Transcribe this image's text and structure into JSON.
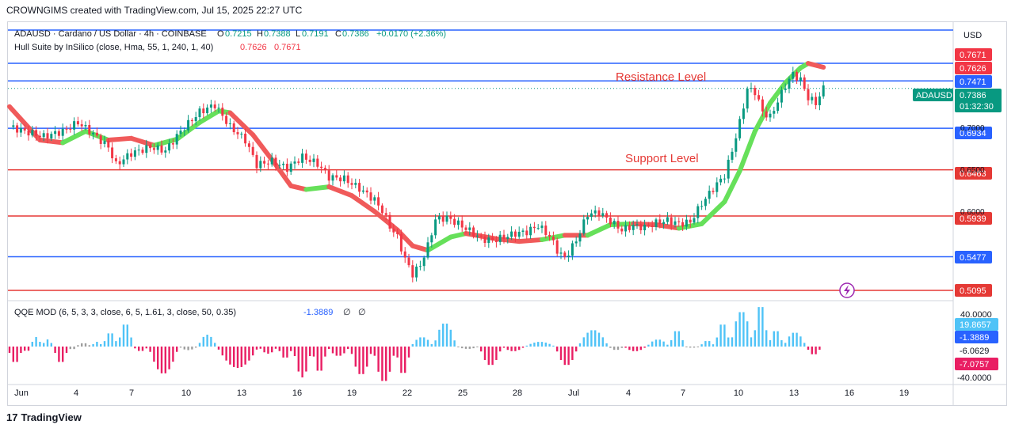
{
  "header": {
    "attribution": "CROWNGIMS created with TradingView.com, Jul 15, 2025 22:27 UTC"
  },
  "footer": {
    "brand": "TradingView",
    "logo_glyph": "17"
  },
  "colors": {
    "bull": "#089981",
    "bear": "#f23645",
    "blue_line": "#2962ff",
    "red_line": "#e53935",
    "hull_up": "#66e05a",
    "hull_down": "#f05a5a",
    "qqe_pos": "#4fc3f7",
    "qqe_neg": "#e91e63",
    "qqe_neutral": "#9e9e9e"
  },
  "legend": {
    "symbol": "ADAUSD · Cardano / US Dollar · 4h · COINBASE",
    "o_label": "O",
    "o": "0.7215",
    "h_label": "H",
    "h": "0.7388",
    "l_label": "L",
    "l": "0.7191",
    "c_label": "C",
    "c": "0.7386",
    "change": "+0.0170 (+2.36%)",
    "hull_label": "Hull Suite by InSilico (close, Hma, 55, 1, 240, 1, 40)",
    "hull_v1": "0.7626",
    "hull_v2": "0.7671"
  },
  "qqe_legend": {
    "label": "QQE MOD (6, 5, 3, 3, close, 6, 5, 1.61, 3, close, 50, 0.35)",
    "value": "-1.3889",
    "extra1": "∅",
    "extra2": "∅"
  },
  "currency": "USD",
  "annotations": {
    "resistance": "Resistance Level",
    "support": "Support Level"
  },
  "chart_data": [
    {
      "type": "candlestick",
      "title": "ADAUSD · Cardano / US Dollar · 4h · COINBASE",
      "ylim": [
        0.5,
        0.78
      ],
      "x_ticks": [
        "Jun",
        "4",
        "7",
        "10",
        "13",
        "16",
        "19",
        "22",
        "25",
        "28",
        "Jul",
        "4",
        "7",
        "10",
        "13",
        "16",
        "19"
      ],
      "y_axis_labels": [
        "0.7000",
        "0.6500",
        "0.6000"
      ],
      "last_price": {
        "symbol": "ADAUSD",
        "value": "0.7386",
        "countdown": "01:32:30"
      },
      "price_tags": [
        {
          "value": "0.7671",
          "color": "#f23645"
        },
        {
          "value": "0.7626",
          "color": "#f23645"
        },
        {
          "value": "0.7471",
          "color": "#2962ff"
        },
        {
          "value": "0.6934",
          "color": "#2962ff"
        },
        {
          "value": "0.6463",
          "color": "#e53935"
        },
        {
          "value": "0.5939",
          "color": "#e53935"
        },
        {
          "value": "0.5477",
          "color": "#2962ff"
        },
        {
          "value": "0.5095",
          "color": "#e53935"
        }
      ],
      "horizontal_levels": [
        {
          "value": 0.7471,
          "color": "#2962ff"
        },
        {
          "value": 0.6934,
          "color": "#2962ff"
        },
        {
          "value": 0.6463,
          "color": "#e53935"
        },
        {
          "value": 0.5939,
          "color": "#e53935"
        },
        {
          "value": 0.5477,
          "color": "#2962ff"
        },
        {
          "value": 0.5095,
          "color": "#e53935"
        }
      ],
      "close_path": [
        [
          0,
          0.695
        ],
        [
          4,
          0.69
        ],
        [
          9,
          0.684
        ],
        [
          14,
          0.69
        ],
        [
          18,
          0.7
        ],
        [
          22,
          0.687
        ],
        [
          26,
          0.672
        ],
        [
          28,
          0.652
        ],
        [
          32,
          0.665
        ],
        [
          37,
          0.672
        ],
        [
          41,
          0.668
        ],
        [
          45,
          0.69
        ],
        [
          50,
          0.712
        ],
        [
          54,
          0.72
        ],
        [
          58,
          0.695
        ],
        [
          62,
          0.68
        ],
        [
          65,
          0.652
        ],
        [
          69,
          0.656
        ],
        [
          73,
          0.648
        ],
        [
          77,
          0.661
        ],
        [
          81,
          0.653
        ],
        [
          84,
          0.638
        ],
        [
          88,
          0.636
        ],
        [
          92,
          0.625
        ],
        [
          96,
          0.612
        ],
        [
          98,
          0.6
        ],
        [
          100,
          0.582
        ],
        [
          102,
          0.57
        ],
        [
          104,
          0.545
        ],
        [
          106,
          0.528
        ],
        [
          108,
          0.538
        ],
        [
          110,
          0.56
        ],
        [
          112,
          0.59
        ],
        [
          115,
          0.592
        ],
        [
          118,
          0.585
        ],
        [
          121,
          0.577
        ],
        [
          124,
          0.568
        ],
        [
          127,
          0.566
        ],
        [
          130,
          0.57
        ],
        [
          133,
          0.574
        ],
        [
          136,
          0.576
        ],
        [
          139,
          0.583
        ],
        [
          142,
          0.571
        ],
        [
          144,
          0.555
        ],
        [
          146,
          0.546
        ],
        [
          149,
          0.566
        ],
        [
          152,
          0.596
        ],
        [
          155,
          0.598
        ],
        [
          158,
          0.588
        ],
        [
          161,
          0.578
        ],
        [
          164,
          0.583
        ],
        [
          167,
          0.581
        ],
        [
          170,
          0.586
        ],
        [
          173,
          0.589
        ],
        [
          176,
          0.585
        ],
        [
          179,
          0.587
        ],
        [
          182,
          0.608
        ],
        [
          185,
          0.625
        ],
        [
          188,
          0.64
        ],
        [
          190,
          0.668
        ],
        [
          192,
          0.7
        ],
        [
          194,
          0.738
        ],
        [
          196,
          0.735
        ],
        [
          198,
          0.712
        ],
        [
          200,
          0.706
        ],
        [
          202,
          0.724
        ],
        [
          204,
          0.742
        ],
        [
          206,
          0.755
        ],
        [
          208,
          0.748
        ],
        [
          210,
          0.728
        ],
        [
          212,
          0.722
        ],
        [
          214,
          0.7386
        ]
      ],
      "hull_path": [
        [
          0,
          0.718,
          "dn"
        ],
        [
          8,
          0.68,
          "dn"
        ],
        [
          14,
          0.677,
          "up"
        ],
        [
          20,
          0.69,
          "up"
        ],
        [
          26,
          0.68,
          "dn"
        ],
        [
          32,
          0.682,
          "dn"
        ],
        [
          38,
          0.674,
          "up"
        ],
        [
          44,
          0.681,
          "up"
        ],
        [
          50,
          0.7,
          "up"
        ],
        [
          55,
          0.713,
          "up"
        ],
        [
          58,
          0.711,
          "dn"
        ],
        [
          64,
          0.686,
          "dn"
        ],
        [
          70,
          0.652,
          "dn"
        ],
        [
          74,
          0.628,
          "dn"
        ],
        [
          78,
          0.624,
          "up"
        ],
        [
          84,
          0.627,
          "dn"
        ],
        [
          90,
          0.617,
          "dn"
        ],
        [
          96,
          0.599,
          "dn"
        ],
        [
          102,
          0.578,
          "dn"
        ],
        [
          106,
          0.56,
          "dn"
        ],
        [
          110,
          0.555,
          "up"
        ],
        [
          116,
          0.57,
          "up"
        ],
        [
          120,
          0.574,
          "dn"
        ],
        [
          128,
          0.568,
          "dn"
        ],
        [
          134,
          0.565,
          "dn"
        ],
        [
          140,
          0.567,
          "up"
        ],
        [
          146,
          0.572,
          "dn"
        ],
        [
          152,
          0.572,
          "up"
        ],
        [
          158,
          0.584,
          "up"
        ],
        [
          164,
          0.585,
          "dn"
        ],
        [
          170,
          0.584,
          "dn"
        ],
        [
          176,
          0.58,
          "up"
        ],
        [
          182,
          0.585,
          "up"
        ],
        [
          188,
          0.61,
          "up"
        ],
        [
          192,
          0.645,
          "up"
        ],
        [
          196,
          0.69,
          "up"
        ],
        [
          200,
          0.722,
          "up"
        ],
        [
          204,
          0.745,
          "up"
        ],
        [
          208,
          0.762,
          "up"
        ],
        [
          210,
          0.767,
          "dn"
        ],
        [
          214,
          0.7626,
          "dn"
        ]
      ]
    },
    {
      "type": "histogram",
      "title": "QQE MOD",
      "ylim": [
        -40,
        40
      ],
      "axis_labels": [
        "40.0000",
        "-40.0000"
      ],
      "value_tags": [
        {
          "value": "19.8657",
          "color": "#4fc3f7"
        },
        {
          "value": "-1.3889",
          "color": "#2962ff"
        },
        {
          "value": "-6.0629",
          "color": "none"
        },
        {
          "value": "-7.0757",
          "color": "#e91e63"
        }
      ],
      "segments": [
        [
          0,
          4,
          -14
        ],
        [
          4,
          6,
          -5
        ],
        [
          6,
          9,
          8
        ],
        [
          9,
          12,
          6
        ],
        [
          12,
          16,
          -14
        ],
        [
          16,
          18,
          -3
        ],
        [
          18,
          22,
          3
        ],
        [
          22,
          25,
          4
        ],
        [
          25,
          29,
          12
        ],
        [
          29,
          33,
          20
        ],
        [
          33,
          37,
          -4
        ],
        [
          37,
          45,
          -23
        ],
        [
          45,
          50,
          -3
        ],
        [
          50,
          55,
          10
        ],
        [
          55,
          66,
          -18
        ],
        [
          66,
          71,
          -6
        ],
        [
          71,
          75,
          -10
        ],
        [
          75,
          80,
          -26
        ],
        [
          80,
          84,
          -22
        ],
        [
          84,
          90,
          -8
        ],
        [
          90,
          96,
          -24
        ],
        [
          96,
          102,
          -30
        ],
        [
          102,
          106,
          -24
        ],
        [
          106,
          112,
          8
        ],
        [
          112,
          118,
          20
        ],
        [
          118,
          124,
          -2
        ],
        [
          124,
          130,
          -16
        ],
        [
          130,
          136,
          -4
        ],
        [
          136,
          144,
          4
        ],
        [
          144,
          150,
          -16
        ],
        [
          150,
          158,
          14
        ],
        [
          158,
          162,
          -3
        ],
        [
          162,
          168,
          -4
        ],
        [
          168,
          174,
          6
        ],
        [
          174,
          178,
          14
        ],
        [
          178,
          182,
          -1
        ],
        [
          182,
          186,
          5
        ],
        [
          186,
          190,
          20
        ],
        [
          190,
          196,
          30
        ],
        [
          196,
          200,
          36
        ],
        [
          200,
          204,
          14
        ],
        [
          204,
          210,
          12
        ],
        [
          210,
          214,
          -7
        ]
      ]
    }
  ]
}
